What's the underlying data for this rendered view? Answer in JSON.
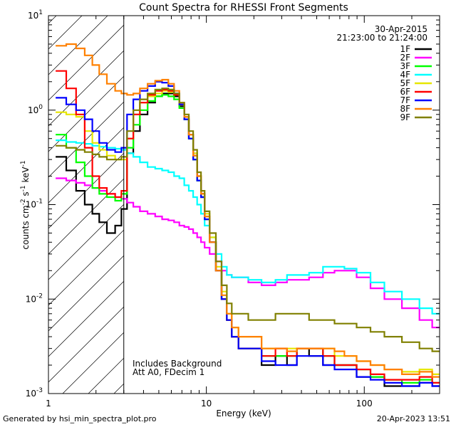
{
  "chart_data": {
    "type": "line",
    "title": "Count Spectra for RHESSI Front Segments",
    "xlabel": "Energy (keV)",
    "ylabel_parts": [
      "counts cm",
      "-2",
      " s",
      "-1",
      " keV",
      "-1"
    ],
    "xscale": "log",
    "yscale": "log",
    "xlim": [
      1,
      300
    ],
    "ylim": [
      0.001,
      10
    ],
    "x_ticks": [
      {
        "value": 1,
        "label": "1"
      },
      {
        "value": 10,
        "label": "10"
      },
      {
        "value": 100,
        "label": "100"
      }
    ],
    "y_ticks": [
      {
        "value": 0.001,
        "base": "10",
        "exp": "-3"
      },
      {
        "value": 0.01,
        "base": "10",
        "exp": "-2"
      },
      {
        "value": 0.1,
        "base": "10",
        "exp": "-1"
      },
      {
        "value": 1,
        "base": "10",
        "exp": "0"
      },
      {
        "value": 10,
        "base": "10",
        "exp": "1"
      }
    ],
    "date": "30-Apr-2015",
    "time_range": "21:23:00 to 21:24:00",
    "hatched_below_keV": 3,
    "annotations": [
      "Includes Background",
      "Att A0, FDecim 1"
    ],
    "series": [
      {
        "name": "1F",
        "color": "#000000",
        "x": [
          1.2,
          1.4,
          1.6,
          1.8,
          2.0,
          2.2,
          2.5,
          2.8,
          3.0,
          3.3,
          3.6,
          4.0,
          4.5,
          5.0,
          5.5,
          6.0,
          6.5,
          7.0,
          7.5,
          8.0,
          8.5,
          9.0,
          9.5,
          10,
          11,
          12,
          13,
          14,
          15,
          17,
          20,
          25,
          30,
          35,
          40,
          50,
          60,
          70,
          80,
          100,
          120,
          150,
          200,
          250,
          290
        ],
        "y": [
          0.32,
          0.23,
          0.14,
          0.1,
          0.08,
          0.065,
          0.05,
          0.06,
          0.09,
          0.35,
          0.6,
          0.9,
          1.2,
          1.4,
          1.5,
          1.5,
          1.4,
          1.1,
          0.8,
          0.5,
          0.3,
          0.18,
          0.12,
          0.07,
          0.04,
          0.02,
          0.01,
          0.006,
          0.004,
          0.003,
          0.003,
          0.002,
          0.0025,
          0.002,
          0.003,
          0.0025,
          0.002,
          0.002,
          0.002,
          0.0015,
          0.0015,
          0.0012,
          0.0012,
          0.0013,
          0.0012
        ]
      },
      {
        "name": "2F",
        "color": "#ff00ff",
        "x": [
          1.2,
          1.4,
          1.6,
          1.8,
          2.0,
          2.2,
          2.5,
          2.8,
          3.0,
          3.3,
          3.6,
          4.0,
          4.5,
          5.0,
          5.5,
          6.0,
          6.5,
          7.0,
          7.5,
          8.0,
          8.5,
          9.0,
          9.5,
          10,
          11,
          12,
          13,
          14,
          15,
          17,
          20,
          25,
          30,
          35,
          40,
          50,
          60,
          70,
          80,
          100,
          120,
          150,
          200,
          250,
          290
        ],
        "y": [
          0.19,
          0.18,
          0.17,
          0.16,
          0.15,
          0.14,
          0.13,
          0.12,
          0.115,
          0.105,
          0.095,
          0.085,
          0.08,
          0.075,
          0.07,
          0.068,
          0.065,
          0.06,
          0.058,
          0.055,
          0.05,
          0.045,
          0.04,
          0.035,
          0.03,
          0.025,
          0.02,
          0.018,
          0.017,
          0.017,
          0.015,
          0.014,
          0.015,
          0.016,
          0.016,
          0.017,
          0.019,
          0.02,
          0.02,
          0.017,
          0.013,
          0.01,
          0.008,
          0.006,
          0.005
        ]
      },
      {
        "name": "3F",
        "color": "#00ff00",
        "x": [
          1.2,
          1.4,
          1.6,
          1.8,
          2.0,
          2.2,
          2.5,
          2.8,
          3.0,
          3.3,
          3.6,
          4.0,
          4.5,
          5.0,
          5.5,
          6.0,
          6.5,
          7.0,
          7.5,
          8.0,
          8.5,
          9.0,
          9.5,
          10,
          11,
          12,
          13,
          14,
          15,
          17,
          20,
          25,
          30,
          35,
          40,
          50,
          60,
          70,
          80,
          100,
          120,
          150,
          200,
          250,
          290
        ],
        "y": [
          0.55,
          0.4,
          0.28,
          0.2,
          0.15,
          0.13,
          0.12,
          0.11,
          0.13,
          0.4,
          0.7,
          1.0,
          1.25,
          1.4,
          1.45,
          1.4,
          1.3,
          1.05,
          0.8,
          0.5,
          0.3,
          0.18,
          0.12,
          0.07,
          0.04,
          0.02,
          0.01,
          0.006,
          0.004,
          0.003,
          0.003,
          0.0025,
          0.0025,
          0.0025,
          0.003,
          0.003,
          0.0025,
          0.002,
          0.002,
          0.0018,
          0.0015,
          0.0014,
          0.0013,
          0.0014,
          0.0013
        ]
      },
      {
        "name": "4F",
        "color": "#00ffff",
        "x": [
          1.2,
          1.4,
          1.6,
          1.8,
          2.0,
          2.2,
          2.5,
          2.8,
          3.0,
          3.3,
          3.6,
          4.0,
          4.5,
          5.0,
          5.5,
          6.0,
          6.5,
          7.0,
          7.5,
          8.0,
          8.5,
          9.0,
          9.5,
          10,
          11,
          12,
          13,
          14,
          15,
          17,
          20,
          25,
          30,
          35,
          40,
          50,
          60,
          70,
          80,
          100,
          120,
          150,
          200,
          250,
          290
        ],
        "y": [
          0.48,
          0.46,
          0.45,
          0.44,
          0.42,
          0.41,
          0.4,
          0.39,
          0.38,
          0.35,
          0.32,
          0.28,
          0.25,
          0.24,
          0.23,
          0.22,
          0.2,
          0.19,
          0.16,
          0.14,
          0.12,
          0.1,
          0.08,
          0.06,
          0.045,
          0.03,
          0.022,
          0.018,
          0.017,
          0.017,
          0.016,
          0.015,
          0.016,
          0.018,
          0.018,
          0.019,
          0.022,
          0.022,
          0.021,
          0.019,
          0.015,
          0.012,
          0.01,
          0.008,
          0.007
        ]
      },
      {
        "name": "5F",
        "color": "#e6e600",
        "x": [
          1.2,
          1.4,
          1.6,
          1.8,
          2.0,
          2.2,
          2.5,
          2.8,
          3.0,
          3.3,
          3.6,
          4.0,
          4.5,
          5.0,
          5.5,
          6.0,
          6.5,
          7.0,
          7.5,
          8.0,
          8.5,
          9.0,
          9.5,
          10,
          11,
          12,
          13,
          14,
          15,
          17,
          20,
          25,
          30,
          35,
          40,
          50,
          60,
          70,
          80,
          100,
          120,
          150,
          200,
          250,
          290
        ],
        "y": [
          0.95,
          0.9,
          0.85,
          0.6,
          0.45,
          0.38,
          0.33,
          0.3,
          0.3,
          0.5,
          0.9,
          1.2,
          1.4,
          1.5,
          1.6,
          1.55,
          1.45,
          1.15,
          0.85,
          0.55,
          0.35,
          0.2,
          0.13,
          0.08,
          0.045,
          0.022,
          0.012,
          0.007,
          0.005,
          0.004,
          0.004,
          0.003,
          0.003,
          0.003,
          0.003,
          0.003,
          0.003,
          0.0025,
          0.0025,
          0.0022,
          0.002,
          0.0018,
          0.0017,
          0.0018,
          0.0016
        ]
      },
      {
        "name": "6F",
        "color": "#ff0000",
        "x": [
          1.2,
          1.4,
          1.6,
          1.8,
          2.0,
          2.2,
          2.5,
          2.8,
          3.0,
          3.3,
          3.6,
          4.0,
          4.5,
          5.0,
          5.5,
          6.0,
          6.5,
          7.0,
          7.5,
          8.0,
          8.5,
          9.0,
          9.5,
          10,
          11,
          12,
          13,
          14,
          15,
          17,
          20,
          25,
          30,
          35,
          40,
          50,
          60,
          70,
          80,
          100,
          120,
          150,
          200,
          250,
          290
        ],
        "y": [
          2.6,
          1.7,
          0.9,
          0.4,
          0.2,
          0.15,
          0.13,
          0.12,
          0.14,
          0.5,
          0.9,
          1.2,
          1.45,
          1.6,
          1.65,
          1.6,
          1.45,
          1.15,
          0.85,
          0.55,
          0.33,
          0.2,
          0.13,
          0.075,
          0.04,
          0.02,
          0.01,
          0.006,
          0.004,
          0.003,
          0.003,
          0.0025,
          0.003,
          0.0025,
          0.003,
          0.003,
          0.0025,
          0.002,
          0.002,
          0.0018,
          0.0016,
          0.0014,
          0.0014,
          0.0015,
          0.0013
        ]
      },
      {
        "name": "7F",
        "color": "#0000ff",
        "x": [
          1.2,
          1.4,
          1.6,
          1.8,
          2.0,
          2.2,
          2.5,
          2.8,
          3.0,
          3.3,
          3.6,
          4.0,
          4.5,
          5.0,
          5.5,
          6.0,
          6.5,
          7.0,
          7.5,
          8.0,
          8.5,
          9.0,
          9.5,
          10,
          11,
          12,
          13,
          14,
          15,
          17,
          20,
          25,
          30,
          35,
          40,
          50,
          60,
          70,
          80,
          100,
          120,
          150,
          200,
          250,
          290
        ],
        "y": [
          1.35,
          1.15,
          1.0,
          0.8,
          0.6,
          0.45,
          0.38,
          0.36,
          0.4,
          0.9,
          1.3,
          1.6,
          1.8,
          2.0,
          1.95,
          1.8,
          1.5,
          1.15,
          0.8,
          0.5,
          0.3,
          0.18,
          0.12,
          0.07,
          0.04,
          0.02,
          0.01,
          0.006,
          0.004,
          0.003,
          0.003,
          0.0022,
          0.002,
          0.002,
          0.0025,
          0.0025,
          0.002,
          0.0018,
          0.0018,
          0.0015,
          0.0014,
          0.0013,
          0.0012,
          0.0013,
          0.0012
        ]
      },
      {
        "name": "8F",
        "color": "#ff8000",
        "x": [
          1.2,
          1.4,
          1.6,
          1.8,
          2.0,
          2.2,
          2.5,
          2.8,
          3.0,
          3.3,
          3.6,
          4.0,
          4.5,
          5.0,
          5.5,
          6.0,
          6.5,
          7.0,
          7.5,
          8.0,
          8.5,
          9.0,
          9.5,
          10,
          11,
          12,
          13,
          14,
          15,
          17,
          20,
          25,
          30,
          35,
          40,
          50,
          60,
          70,
          80,
          100,
          120,
          150,
          200,
          250,
          290
        ],
        "y": [
          4.8,
          5.0,
          4.5,
          3.8,
          3.0,
          2.4,
          1.9,
          1.6,
          1.5,
          1.45,
          1.5,
          1.7,
          1.9,
          2.05,
          2.1,
          1.9,
          1.6,
          1.2,
          0.85,
          0.55,
          0.33,
          0.2,
          0.13,
          0.075,
          0.04,
          0.02,
          0.011,
          0.007,
          0.005,
          0.004,
          0.004,
          0.003,
          0.003,
          0.0028,
          0.003,
          0.003,
          0.003,
          0.0028,
          0.0025,
          0.0022,
          0.002,
          0.0018,
          0.0016,
          0.0017,
          0.0015
        ]
      },
      {
        "name": "9F",
        "color": "#808000",
        "x": [
          1.2,
          1.4,
          1.6,
          1.8,
          2.0,
          2.2,
          2.5,
          2.8,
          3.0,
          3.3,
          3.6,
          4.0,
          4.5,
          5.0,
          5.5,
          6.0,
          6.5,
          7.0,
          7.5,
          8.0,
          8.5,
          9.0,
          9.5,
          10,
          11,
          12,
          13,
          14,
          15,
          17,
          20,
          25,
          30,
          35,
          40,
          50,
          60,
          70,
          80,
          100,
          120,
          150,
          200,
          250,
          290
        ],
        "y": [
          0.42,
          0.4,
          0.38,
          0.36,
          0.34,
          0.32,
          0.3,
          0.3,
          0.32,
          0.6,
          1.0,
          1.3,
          1.5,
          1.65,
          1.7,
          1.65,
          1.5,
          1.2,
          0.9,
          0.6,
          0.38,
          0.22,
          0.14,
          0.085,
          0.05,
          0.025,
          0.014,
          0.009,
          0.007,
          0.007,
          0.006,
          0.006,
          0.007,
          0.007,
          0.007,
          0.006,
          0.006,
          0.0055,
          0.0055,
          0.005,
          0.0045,
          0.004,
          0.0035,
          0.003,
          0.0028
        ]
      }
    ]
  },
  "footer": {
    "left": "Generated by hsi_min_spectra_plot.pro",
    "right": "20-Apr-2023 13:51"
  }
}
